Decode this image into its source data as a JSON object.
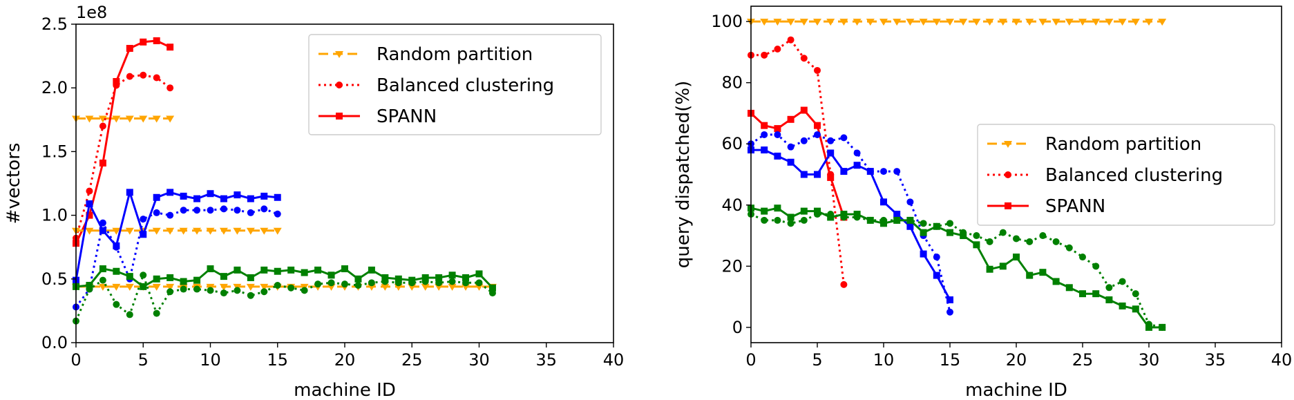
{
  "chart_data": [
    {
      "type": "line",
      "xlabel": "machine ID",
      "ylabel": "#vectors",
      "offset_text": "1e8",
      "xlim": [
        0,
        40
      ],
      "ylim": [
        0,
        2.5
      ],
      "xticks": [
        0,
        5,
        10,
        15,
        20,
        25,
        30,
        35,
        40
      ],
      "yticks": [
        0,
        0.5,
        1.0,
        1.5,
        2.0,
        2.5
      ],
      "ytick_labels": [
        "0.0",
        "0.5",
        "1.0",
        "1.5",
        "2.0",
        "2.5"
      ],
      "legend": {
        "placement": "top-right",
        "entries": [
          {
            "label": "Random partition",
            "color": "#FFA500",
            "style": "dashed",
            "marker": "triangle-down"
          },
          {
            "label": "Balanced clustering",
            "color": "#FF0000",
            "style": "dotted",
            "marker": "circle"
          },
          {
            "label": "SPANN",
            "color": "#FF0000",
            "style": "solid",
            "marker": "square"
          }
        ]
      },
      "series": [
        {
          "method": "Random partition",
          "color": "#FFA500",
          "style": "dashed",
          "marker": "triangle-down",
          "x": [
            0,
            1,
            2,
            3,
            4,
            5,
            6,
            7
          ],
          "y": [
            1.76,
            1.76,
            1.76,
            1.76,
            1.76,
            1.76,
            1.76,
            1.76
          ]
        },
        {
          "method": "Balanced clustering",
          "color": "#FF0000",
          "style": "dotted",
          "marker": "circle",
          "x": [
            0,
            1,
            2,
            3,
            4,
            5,
            6,
            7
          ],
          "y": [
            0.82,
            1.19,
            1.7,
            2.02,
            2.09,
            2.1,
            2.08,
            2.0
          ]
        },
        {
          "method": "SPANN",
          "color": "#FF0000",
          "style": "solid",
          "marker": "square",
          "x": [
            0,
            1,
            2,
            3,
            4,
            5,
            6,
            7
          ],
          "y": [
            0.78,
            1.0,
            1.41,
            2.05,
            2.31,
            2.36,
            2.37,
            2.32
          ]
        },
        {
          "method": "Random partition",
          "color": "#FFA500",
          "style": "dashed",
          "marker": "triangle-down",
          "x": [
            0,
            1,
            2,
            3,
            4,
            5,
            6,
            7,
            8,
            9,
            10,
            11,
            12,
            13,
            14,
            15
          ],
          "y": [
            0.88,
            0.88,
            0.88,
            0.88,
            0.88,
            0.88,
            0.88,
            0.88,
            0.88,
            0.88,
            0.88,
            0.88,
            0.88,
            0.88,
            0.88,
            0.88
          ]
        },
        {
          "method": "Balanced clustering",
          "color": "#0000FF",
          "style": "dotted",
          "marker": "circle",
          "x": [
            0,
            1,
            2,
            3,
            4,
            5,
            6,
            7,
            8,
            9,
            10,
            11,
            12,
            13,
            14,
            15
          ],
          "y": [
            0.28,
            0.42,
            0.94,
            0.75,
            0.5,
            0.97,
            1.02,
            1.0,
            1.04,
            1.04,
            1.04,
            1.05,
            1.04,
            1.02,
            1.05,
            1.01
          ]
        },
        {
          "method": "SPANN",
          "color": "#0000FF",
          "style": "solid",
          "marker": "square",
          "x": [
            0,
            1,
            2,
            3,
            4,
            5,
            6,
            7,
            8,
            9,
            10,
            11,
            12,
            13,
            14,
            15
          ],
          "y": [
            0.49,
            1.09,
            0.88,
            0.76,
            1.18,
            0.85,
            1.14,
            1.18,
            1.15,
            1.13,
            1.17,
            1.13,
            1.16,
            1.13,
            1.15,
            1.14
          ]
        },
        {
          "method": "Random partition",
          "color": "#FFA500",
          "style": "dashed",
          "marker": "triangle-down",
          "x": [
            0,
            1,
            2,
            3,
            4,
            5,
            6,
            7,
            8,
            9,
            10,
            11,
            12,
            13,
            14,
            15,
            16,
            17,
            18,
            19,
            20,
            21,
            22,
            23,
            24,
            25,
            26,
            27,
            28,
            29,
            30,
            31
          ],
          "y": [
            0.44,
            0.44,
            0.44,
            0.44,
            0.44,
            0.44,
            0.44,
            0.44,
            0.44,
            0.44,
            0.44,
            0.44,
            0.44,
            0.44,
            0.44,
            0.44,
            0.44,
            0.44,
            0.44,
            0.44,
            0.44,
            0.44,
            0.44,
            0.44,
            0.44,
            0.44,
            0.44,
            0.44,
            0.44,
            0.44,
            0.44,
            0.44
          ]
        },
        {
          "method": "Balanced clustering",
          "color": "#008000",
          "style": "dotted",
          "marker": "circle",
          "x": [
            0,
            1,
            2,
            3,
            4,
            5,
            6,
            7,
            8,
            9,
            10,
            11,
            12,
            13,
            14,
            15,
            16,
            17,
            18,
            19,
            20,
            21,
            22,
            23,
            24,
            25,
            26,
            27,
            28,
            29,
            30,
            31
          ],
          "y": [
            0.17,
            0.42,
            0.49,
            0.3,
            0.22,
            0.53,
            0.23,
            0.4,
            0.42,
            0.42,
            0.41,
            0.39,
            0.41,
            0.37,
            0.4,
            0.45,
            0.43,
            0.41,
            0.46,
            0.47,
            0.46,
            0.45,
            0.47,
            0.48,
            0.47,
            0.47,
            0.48,
            0.47,
            0.48,
            0.47,
            0.47,
            0.39
          ]
        },
        {
          "method": "SPANN",
          "color": "#008000",
          "style": "solid",
          "marker": "square",
          "x": [
            0,
            1,
            2,
            3,
            4,
            5,
            6,
            7,
            8,
            9,
            10,
            11,
            12,
            13,
            14,
            15,
            16,
            17,
            18,
            19,
            20,
            21,
            22,
            23,
            24,
            25,
            26,
            27,
            28,
            29,
            30,
            31
          ],
          "y": [
            0.44,
            0.45,
            0.58,
            0.56,
            0.52,
            0.44,
            0.5,
            0.51,
            0.48,
            0.49,
            0.58,
            0.52,
            0.57,
            0.51,
            0.57,
            0.56,
            0.57,
            0.55,
            0.57,
            0.53,
            0.58,
            0.5,
            0.57,
            0.51,
            0.5,
            0.49,
            0.51,
            0.51,
            0.53,
            0.51,
            0.54,
            0.43
          ]
        }
      ]
    },
    {
      "type": "line",
      "xlabel": "machine ID",
      "ylabel": "query dispatched(%)",
      "xlim": [
        0,
        40
      ],
      "ylim": [
        -5,
        105
      ],
      "xticks": [
        0,
        5,
        10,
        15,
        20,
        25,
        30,
        35,
        40
      ],
      "yticks": [
        0,
        20,
        40,
        60,
        80,
        100
      ],
      "ytick_labels": [
        "0",
        "20",
        "40",
        "60",
        "80",
        "100"
      ],
      "legend": {
        "placement": "center-right",
        "entries": [
          {
            "label": "Random partition",
            "color": "#FFA500",
            "style": "dashed",
            "marker": "triangle-down"
          },
          {
            "label": "Balanced clustering",
            "color": "#FF0000",
            "style": "dotted",
            "marker": "circle"
          },
          {
            "label": "SPANN",
            "color": "#FF0000",
            "style": "solid",
            "marker": "square"
          }
        ]
      },
      "series": [
        {
          "method": "Random partition",
          "color": "#FFA500",
          "style": "dashed",
          "marker": "triangle-down",
          "x": [
            0,
            1,
            2,
            3,
            4,
            5,
            6,
            7,
            8,
            9,
            10,
            11,
            12,
            13,
            14,
            15,
            16,
            17,
            18,
            19,
            20,
            21,
            22,
            23,
            24,
            25,
            26,
            27,
            28,
            29,
            30,
            31
          ],
          "y": [
            100,
            100,
            100,
            100,
            100,
            100,
            100,
            100,
            100,
            100,
            100,
            100,
            100,
            100,
            100,
            100,
            100,
            100,
            100,
            100,
            100,
            100,
            100,
            100,
            100,
            100,
            100,
            100,
            100,
            100,
            100,
            100
          ]
        },
        {
          "method": "Balanced clustering",
          "color": "#FF0000",
          "style": "dotted",
          "marker": "circle",
          "x": [
            0,
            1,
            2,
            3,
            4,
            5,
            6,
            7
          ],
          "y": [
            89,
            89,
            91,
            94,
            88,
            84,
            50,
            14
          ]
        },
        {
          "method": "SPANN",
          "color": "#FF0000",
          "style": "solid",
          "marker": "square",
          "x": [
            0,
            1,
            2,
            3,
            4,
            5,
            6,
            7
          ],
          "y": [
            70,
            66,
            65,
            68,
            71,
            66,
            49,
            36
          ]
        },
        {
          "method": "Balanced clustering",
          "color": "#0000FF",
          "style": "dotted",
          "marker": "circle",
          "x": [
            0,
            1,
            2,
            3,
            4,
            5,
            6,
            7,
            8,
            9,
            10,
            11,
            12,
            13,
            14,
            15
          ],
          "y": [
            60,
            63,
            63,
            59,
            61,
            63,
            61,
            62,
            57,
            51,
            51,
            51,
            41,
            30,
            23,
            5
          ]
        },
        {
          "method": "SPANN",
          "color": "#0000FF",
          "style": "solid",
          "marker": "square",
          "x": [
            0,
            1,
            2,
            3,
            4,
            5,
            6,
            7,
            8,
            9,
            10,
            11,
            12,
            13,
            14,
            15
          ],
          "y": [
            58,
            58,
            56,
            54,
            50,
            50,
            57,
            51,
            53,
            51,
            41,
            37,
            33,
            24,
            17,
            9
          ]
        },
        {
          "method": "Balanced clustering",
          "color": "#008000",
          "style": "dotted",
          "marker": "circle",
          "x": [
            0,
            1,
            2,
            3,
            4,
            5,
            6,
            7,
            8,
            9,
            10,
            11,
            12,
            13,
            14,
            15,
            16,
            17,
            18,
            19,
            20,
            21,
            22,
            23,
            24,
            25,
            26,
            27,
            28,
            29,
            30,
            31
          ],
          "y": [
            37,
            35,
            35,
            34,
            35,
            37,
            37,
            36,
            36,
            35,
            35,
            35,
            35,
            34,
            33,
            34,
            31,
            30,
            28,
            31,
            29,
            28,
            30,
            28,
            26,
            23,
            20,
            13,
            15,
            11,
            1,
            0
          ]
        },
        {
          "method": "SPANN",
          "color": "#008000",
          "style": "solid",
          "marker": "square",
          "x": [
            0,
            1,
            2,
            3,
            4,
            5,
            6,
            7,
            8,
            9,
            10,
            11,
            12,
            13,
            14,
            15,
            16,
            17,
            18,
            19,
            20,
            21,
            22,
            23,
            24,
            25,
            26,
            27,
            28,
            29,
            30,
            31
          ],
          "y": [
            39,
            38,
            39,
            36,
            38,
            38,
            36,
            37,
            37,
            35,
            34,
            35,
            35,
            31,
            33,
            31,
            30,
            27,
            19,
            20,
            23,
            17,
            18,
            15,
            13,
            11,
            11,
            9,
            7,
            6,
            0,
            0
          ]
        }
      ]
    }
  ]
}
